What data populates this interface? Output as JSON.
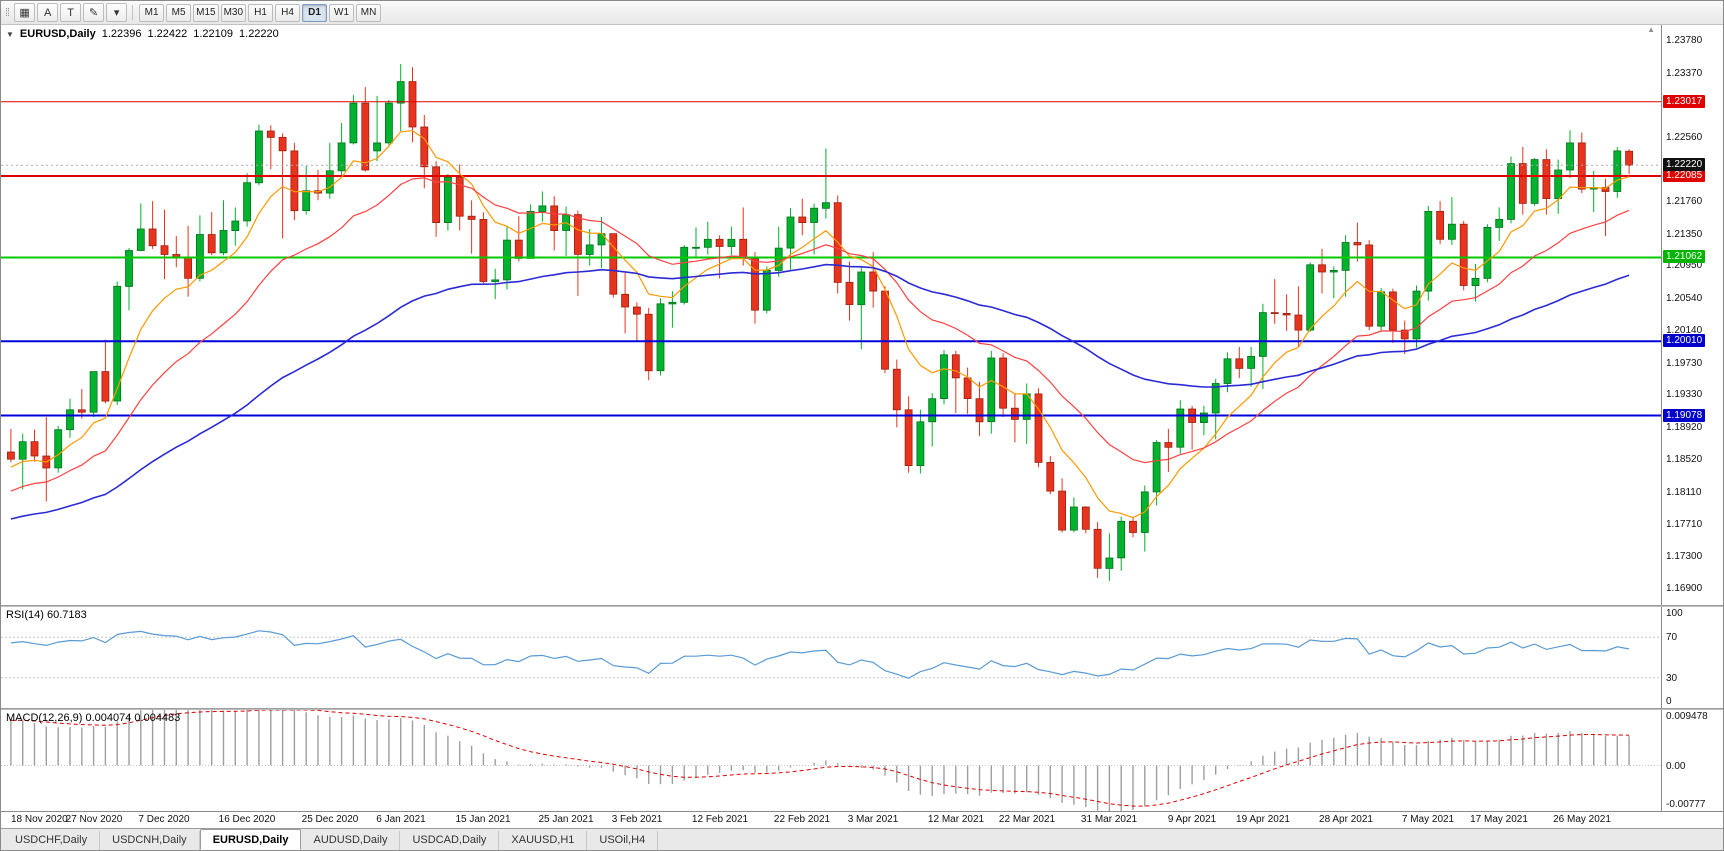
{
  "colors": {
    "bull": "#00B22D",
    "bear": "#E8341F",
    "bull_border": "#00701C",
    "bear_border": "#99200F",
    "rsi_line": "#5B9BD5",
    "macd_hist": "#9E9E9E",
    "macd_signal": "#E00000",
    "level_dotted": "#C8C8C8",
    "current_line": "#AAAAAA"
  },
  "toolbar": {
    "icons": [
      {
        "name": "charts-grid-icon",
        "glyph": "▦"
      },
      {
        "name": "annotation-tool-icon",
        "glyph": "A"
      },
      {
        "name": "text-tool-icon",
        "glyph": "T"
      },
      {
        "name": "draw-tools-icon",
        "glyph": "✎"
      },
      {
        "name": "draw-tools-caret-icon",
        "glyph": "▾"
      }
    ],
    "timeframes": [
      "M1",
      "M5",
      "M15",
      "M30",
      "H1",
      "H4",
      "D1",
      "W1",
      "MN"
    ],
    "active_timeframe": "D1"
  },
  "chart_header": {
    "collapse_icon": "▼",
    "symbol": "EURUSD,Daily",
    "open": "1.22396",
    "high": "1.22422",
    "low": "1.22109",
    "close": "1.22220"
  },
  "price_axis": {
    "min": 1.167,
    "max": 1.2398,
    "ticks": [
      "1.23780",
      "1.23370",
      "1.22960",
      "1.22560",
      "1.22150",
      "1.21760",
      "1.21350",
      "1.20950",
      "1.20540",
      "1.20140",
      "1.19730",
      "1.19330",
      "1.18920",
      "1.18520",
      "1.18110",
      "1.17710",
      "1.17300",
      "1.16900"
    ]
  },
  "hlines": [
    {
      "price": 1.23017,
      "label": "1.23017",
      "color": "#E00000",
      "width": 1,
      "badge": "#E00000"
    },
    {
      "price": 1.22085,
      "label": "1.22085",
      "color": "#E00000",
      "width": 2,
      "badge": "#E00000"
    },
    {
      "price": 1.21062,
      "label": "1.21062",
      "color": "#00C800",
      "width": 2,
      "badge": "#00B400"
    },
    {
      "price": 1.2001,
      "label": "1.20010",
      "color": "#0000DD",
      "width": 2,
      "badge": "#0000CC"
    },
    {
      "price": 1.19078,
      "label": "1.19078",
      "color": "#0000DD",
      "width": 2,
      "badge": "#0000CC"
    }
  ],
  "current_price": {
    "value": 1.2222,
    "label": "1.22220",
    "badge": "#101010"
  },
  "chart_data": {
    "type": "candlestick",
    "title": "EURUSD Daily",
    "x_labels": [
      "18 Nov 2020",
      "27 Nov 2020",
      "7 Dec 2020",
      "16 Dec 2020",
      "25 Dec 2020",
      "6 Jan 2021",
      "15 Jan 2021",
      "25 Jan 2021",
      "3 Feb 2021",
      "12 Feb 2021",
      "22 Feb 2021",
      "3 Mar 2021",
      "12 Mar 2021",
      "22 Mar 2021",
      "31 Mar 2021",
      "9 Apr 2021",
      "19 Apr 2021",
      "28 Apr 2021",
      "7 May 2021",
      "17 May 2021",
      "26 May 2021"
    ],
    "x_label_indices": [
      0,
      7,
      13,
      20,
      27,
      33,
      40,
      47,
      53,
      60,
      67,
      73,
      80,
      86,
      93,
      100,
      106,
      113,
      120,
      126,
      133
    ],
    "candles": [
      [
        1.1862,
        1.1891,
        1.1849,
        1.1853
      ],
      [
        1.1853,
        1.1885,
        1.1815,
        1.1875
      ],
      [
        1.1875,
        1.189,
        1.185,
        1.1857
      ],
      [
        1.1857,
        1.1906,
        1.18,
        1.1842
      ],
      [
        1.1842,
        1.1895,
        1.1836,
        1.189
      ],
      [
        1.189,
        1.1929,
        1.188,
        1.1915
      ],
      [
        1.1915,
        1.1941,
        1.1904,
        1.1912
      ],
      [
        1.1912,
        1.1963,
        1.1906,
        1.1963
      ],
      [
        1.1963,
        1.2003,
        1.1923,
        1.1926
      ],
      [
        1.1926,
        1.2076,
        1.1921,
        1.207
      ],
      [
        1.207,
        1.2118,
        1.204,
        1.2115
      ],
      [
        1.2115,
        1.2174,
        1.2114,
        1.2142
      ],
      [
        1.2142,
        1.2177,
        1.2117,
        1.2121
      ],
      [
        1.2121,
        1.2166,
        1.2079,
        1.211
      ],
      [
        1.211,
        1.2133,
        1.2094,
        1.2106
      ],
      [
        1.2106,
        1.2146,
        1.2057,
        1.208
      ],
      [
        1.208,
        1.2159,
        1.2076,
        1.2135
      ],
      [
        1.2135,
        1.2163,
        1.2109,
        1.2112
      ],
      [
        1.2112,
        1.2178,
        1.2109,
        1.214
      ],
      [
        1.214,
        1.2169,
        1.2121,
        1.2152
      ],
      [
        1.2152,
        1.2212,
        1.2145,
        1.22
      ],
      [
        1.22,
        1.2273,
        1.2197,
        1.2265
      ],
      [
        1.2265,
        1.2272,
        1.2217,
        1.2257
      ],
      [
        1.2257,
        1.2262,
        1.213,
        1.224
      ],
      [
        1.224,
        1.225,
        1.2153,
        1.2165
      ],
      [
        1.2165,
        1.2221,
        1.216,
        1.219
      ],
      [
        1.219,
        1.2216,
        1.2178,
        1.2187
      ],
      [
        1.2187,
        1.225,
        1.218,
        1.2215
      ],
      [
        1.2215,
        1.2275,
        1.2208,
        1.225
      ],
      [
        1.225,
        1.231,
        1.2248,
        1.23
      ],
      [
        1.23,
        1.232,
        1.2214,
        1.2216
      ],
      [
        1.224,
        1.2309,
        1.2227,
        1.225
      ],
      [
        1.225,
        1.2304,
        1.2247,
        1.23
      ],
      [
        1.23,
        1.2349,
        1.2265,
        1.2327
      ],
      [
        1.2327,
        1.2345,
        1.2251,
        1.227
      ],
      [
        1.227,
        1.2285,
        1.2193,
        1.222
      ],
      [
        1.222,
        1.2227,
        1.2132,
        1.215
      ],
      [
        1.215,
        1.2211,
        1.214,
        1.2207
      ],
      [
        1.2207,
        1.2223,
        1.214,
        1.2158
      ],
      [
        1.2158,
        1.2178,
        1.2111,
        1.2154
      ],
      [
        1.2154,
        1.2163,
        1.2074,
        1.2076
      ],
      [
        1.2076,
        1.2092,
        1.2054,
        1.2078
      ],
      [
        1.2078,
        1.2145,
        1.2066,
        1.2128
      ],
      [
        1.2128,
        1.2158,
        1.2101,
        1.2105
      ],
      [
        1.2105,
        1.2173,
        1.2105,
        1.2164
      ],
      [
        1.2164,
        1.2189,
        1.2151,
        1.2171
      ],
      [
        1.2171,
        1.2183,
        1.2115,
        1.214
      ],
      [
        1.214,
        1.217,
        1.2108,
        1.216
      ],
      [
        1.216,
        1.2165,
        1.2058,
        1.211
      ],
      [
        1.211,
        1.2142,
        1.2096,
        1.2122
      ],
      [
        1.2122,
        1.2157,
        1.2093,
        1.2136
      ],
      [
        1.2136,
        1.2136,
        1.2056,
        1.206
      ],
      [
        1.206,
        1.2087,
        1.2011,
        1.2044
      ],
      [
        1.2044,
        1.205,
        1.2002,
        1.2035
      ],
      [
        1.2035,
        1.2043,
        1.1952,
        1.1964
      ],
      [
        1.1964,
        1.2055,
        1.1958,
        1.2048
      ],
      [
        1.2048,
        1.2064,
        1.2018,
        1.205
      ],
      [
        1.205,
        1.2122,
        1.2047,
        1.2119
      ],
      [
        1.2119,
        1.2144,
        1.2106,
        1.2119
      ],
      [
        1.2119,
        1.2151,
        1.211,
        1.2129
      ],
      [
        1.2129,
        1.2134,
        1.208,
        1.212
      ],
      [
        1.212,
        1.2145,
        1.2109,
        1.2129
      ],
      [
        1.2129,
        1.2169,
        1.2096,
        1.2105
      ],
      [
        1.2105,
        1.2113,
        1.2023,
        1.204
      ],
      [
        1.204,
        1.2095,
        1.2036,
        1.209
      ],
      [
        1.209,
        1.2145,
        1.2082,
        1.2118
      ],
      [
        1.2118,
        1.2168,
        1.2091,
        1.2157
      ],
      [
        1.2157,
        1.218,
        1.2134,
        1.215
      ],
      [
        1.215,
        1.2174,
        1.211,
        1.2168
      ],
      [
        1.2168,
        1.2243,
        1.2155,
        1.2175
      ],
      [
        1.2175,
        1.2184,
        1.2061,
        1.2075
      ],
      [
        1.2075,
        1.2101,
        1.2027,
        1.2047
      ],
      [
        1.2047,
        1.2094,
        1.1991,
        1.2088
      ],
      [
        1.2088,
        1.2113,
        1.2043,
        1.2064
      ],
      [
        1.2064,
        1.207,
        1.1961,
        1.1966
      ],
      [
        1.1966,
        1.1978,
        1.1893,
        1.1915
      ],
      [
        1.1915,
        1.1932,
        1.1836,
        1.1845
      ],
      [
        1.1845,
        1.1915,
        1.1835,
        1.19
      ],
      [
        1.19,
        1.1936,
        1.1869,
        1.1929
      ],
      [
        1.1929,
        1.199,
        1.1922,
        1.1984
      ],
      [
        1.1984,
        1.1989,
        1.1911,
        1.1955
      ],
      [
        1.1955,
        1.1968,
        1.191,
        1.1929
      ],
      [
        1.1929,
        1.195,
        1.1882,
        1.19
      ],
      [
        1.19,
        1.1989,
        1.1885,
        1.198
      ],
      [
        1.198,
        1.1986,
        1.1906,
        1.1917
      ],
      [
        1.1917,
        1.1936,
        1.1874,
        1.1903
      ],
      [
        1.1903,
        1.1948,
        1.1872,
        1.1935
      ],
      [
        1.1935,
        1.1942,
        1.1843,
        1.1849
      ],
      [
        1.1849,
        1.1857,
        1.1809,
        1.1813
      ],
      [
        1.1813,
        1.1829,
        1.1761,
        1.1764
      ],
      [
        1.1764,
        1.1805,
        1.1761,
        1.1793
      ],
      [
        1.1793,
        1.1794,
        1.176,
        1.1765
      ],
      [
        1.1765,
        1.1774,
        1.1704,
        1.1716
      ],
      [
        1.1716,
        1.176,
        1.17,
        1.1729
      ],
      [
        1.1729,
        1.1781,
        1.1713,
        1.1775
      ],
      [
        1.1775,
        1.1781,
        1.1755,
        1.1761
      ],
      [
        1.1761,
        1.182,
        1.1737,
        1.1812
      ],
      [
        1.1812,
        1.1877,
        1.1795,
        1.1874
      ],
      [
        1.1874,
        1.1891,
        1.1837,
        1.1868
      ],
      [
        1.1868,
        1.1927,
        1.186,
        1.1916
      ],
      [
        1.1916,
        1.192,
        1.1865,
        1.1899
      ],
      [
        1.1899,
        1.192,
        1.1883,
        1.1911
      ],
      [
        1.1911,
        1.1954,
        1.1878,
        1.1948
      ],
      [
        1.1948,
        1.1987,
        1.1937,
        1.1979
      ],
      [
        1.1979,
        1.1994,
        1.1955,
        1.1967
      ],
      [
        1.1967,
        1.1994,
        1.1944,
        1.1982
      ],
      [
        1.1982,
        1.2048,
        1.1941,
        1.2037
      ],
      [
        1.2037,
        1.2079,
        1.2023,
        1.2036
      ],
      [
        1.2036,
        1.206,
        1.2014,
        1.2034
      ],
      [
        1.2034,
        1.207,
        1.1994,
        1.2015
      ],
      [
        1.2015,
        1.21,
        1.2013,
        1.2097
      ],
      [
        1.2097,
        1.2117,
        1.2061,
        1.2088
      ],
      [
        1.2088,
        1.2095,
        1.2055,
        1.209
      ],
      [
        1.209,
        1.2134,
        1.2057,
        1.2125
      ],
      [
        1.2125,
        1.215,
        1.2101,
        1.2122
      ],
      [
        1.2122,
        1.2128,
        1.2015,
        1.202
      ],
      [
        1.202,
        1.2068,
        1.2013,
        1.2063
      ],
      [
        1.2063,
        1.2067,
        1.1999,
        1.2015
      ],
      [
        1.2015,
        1.2027,
        1.1985,
        1.2004
      ],
      [
        1.2004,
        1.2071,
        1.1993,
        1.2064
      ],
      [
        1.2064,
        1.2171,
        1.2052,
        1.2164
      ],
      [
        1.2164,
        1.2177,
        1.2123,
        1.2129
      ],
      [
        1.2129,
        1.2182,
        1.2122,
        1.2148
      ],
      [
        1.2148,
        1.2152,
        1.2065,
        1.2071
      ],
      [
        1.2071,
        1.2098,
        1.2051,
        1.208
      ],
      [
        1.208,
        1.2148,
        1.2075,
        1.2144
      ],
      [
        1.2144,
        1.2169,
        1.2127,
        1.2154
      ],
      [
        1.2154,
        1.2233,
        1.2149,
        1.2224
      ],
      [
        1.2224,
        1.2245,
        1.216,
        1.2174
      ],
      [
        1.2174,
        1.2231,
        1.2171,
        1.2229
      ],
      [
        1.2229,
        1.2242,
        1.216,
        1.218
      ],
      [
        1.218,
        1.2229,
        1.2161,
        1.2216
      ],
      [
        1.2216,
        1.2266,
        1.2206,
        1.225
      ],
      [
        1.225,
        1.2263,
        1.2187,
        1.2192
      ],
      [
        1.2192,
        1.2215,
        1.2163,
        1.2194
      ],
      [
        1.2194,
        1.2205,
        1.2133,
        1.2189
      ],
      [
        1.2189,
        1.2245,
        1.2181,
        1.224
      ],
      [
        1.22396,
        1.22422,
        1.22109,
        1.2222
      ]
    ],
    "overlays": [
      {
        "name": "ma-fast",
        "period": 8,
        "seed_offset": -0.001,
        "color": "#FF9900",
        "width": 1.2
      },
      {
        "name": "ma-mid",
        "period": 20,
        "seed_offset": -0.004,
        "color": "#FF4040",
        "width": 1.2
      },
      {
        "name": "ma-slow",
        "period": 55,
        "seed_offset": -0.0075,
        "color": "#2B2BD5",
        "width": 1.6
      }
    ]
  },
  "rsi": {
    "label": "RSI(14) 60.7183",
    "period": 14,
    "seed_gain": 0.0029,
    "seed_loss": 0.0016,
    "levels": [
      70,
      30
    ],
    "ticks": [
      {
        "v": 100,
        "t": "100"
      },
      {
        "v": 70,
        "t": "70"
      },
      {
        "v": 30,
        "t": "30"
      },
      {
        "v": 0,
        "t": "0"
      }
    ]
  },
  "macd": {
    "label": "MACD(12,26,9) 0.004074 0.004483",
    "fast": 12,
    "slow": 26,
    "signal": 9,
    "seed_fast_offset": -0.0015,
    "seed_slow_offset": -0.0095,
    "max": 0.009478,
    "min": -0.00777,
    "ticks": [
      {
        "v": 0.009478,
        "t": "0.009478"
      },
      {
        "v": 0,
        "t": "0.00"
      },
      {
        "v": -0.00777,
        "t": "-0.00777"
      }
    ]
  },
  "tabs": [
    {
      "label": "USDCHF,Daily"
    },
    {
      "label": "USDCNH,Daily"
    },
    {
      "label": "EURUSD,Daily",
      "active": true
    },
    {
      "label": "AUDUSD,Daily"
    },
    {
      "label": "USDCAD,Daily"
    },
    {
      "label": "XAUUSD,H1"
    },
    {
      "label": "USOil,H4"
    }
  ]
}
